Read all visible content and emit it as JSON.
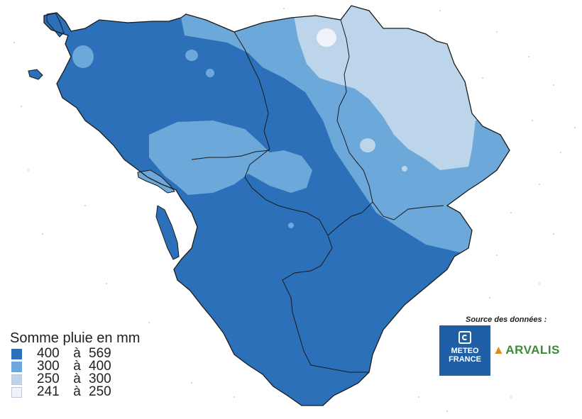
{
  "map": {
    "colors": {
      "band_400_569": "#2b70b8",
      "band_300_400": "#6ca8d9",
      "band_250_300": "#bcd5ea",
      "band_241_250": "#eef3fa",
      "border": "#1a1a1a",
      "background": "#ffffff"
    }
  },
  "legend": {
    "title": "Somme pluie en mm",
    "items": [
      {
        "from": "400",
        "sep": "à",
        "to": "569",
        "color": "#2b70b8"
      },
      {
        "from": "300",
        "sep": "à",
        "to": "400",
        "color": "#6ca8d9"
      },
      {
        "from": "250",
        "sep": "à",
        "to": "300",
        "color": "#bcd5ea"
      },
      {
        "from": "241",
        "sep": "à",
        "to": "250",
        "color": "#eef3fa"
      }
    ]
  },
  "source": {
    "label": "Source des données :",
    "logos": [
      {
        "name": "meteo-france",
        "line1": "METEO",
        "line2": "FRANCE",
        "color": "#1f5fa8"
      },
      {
        "name": "arvalis",
        "text": "ARVALIS",
        "color": "#3e8a3a"
      }
    ]
  }
}
